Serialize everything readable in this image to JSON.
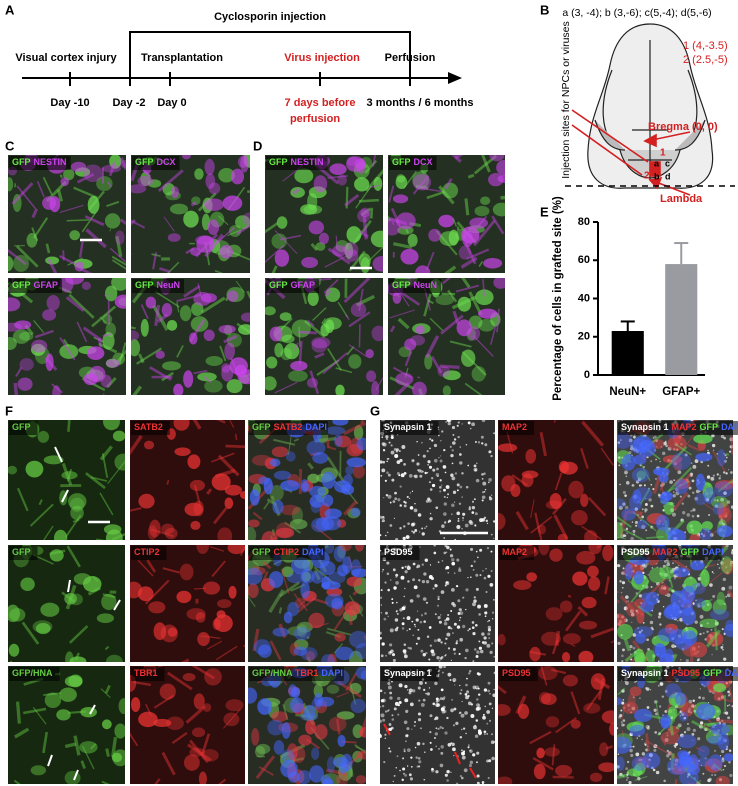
{
  "figure": {
    "panel_a": {
      "label": "A",
      "bracket": "Cyclosporin injection",
      "events": [
        "Visual cortex injury",
        "Transplantation",
        "Virus injection",
        "Perfusion"
      ],
      "days": [
        "Day -10",
        "Day -2",
        "Day 0",
        "3 months / 6 months"
      ],
      "virus_timing": [
        "7 days before",
        "perfusion"
      ]
    },
    "panel_b": {
      "label": "B",
      "coordinates": "a (3, -4); b (3,-6); c(5,-4); d(5,-6)",
      "axis_label": "Injection sites for NPCs or viruses",
      "sites": [
        "1 (4,-3.5)",
        "2 (2.5,-5)"
      ],
      "bregma": "Bregma (0, 0)",
      "lambda": "Lambda",
      "site_marks": [
        "1",
        "2",
        "a",
        "b",
        "c",
        "d"
      ]
    },
    "panel_c": {
      "label": "C",
      "tiles": [
        {
          "channels": [
            {
              "text": "GFP",
              "color": "#66ee44"
            },
            {
              "text": "NESTIN",
              "color": "#cc44ee"
            }
          ]
        },
        {
          "channels": [
            {
              "text": "GFP",
              "color": "#66ee44"
            },
            {
              "text": "DCX",
              "color": "#cc44ee"
            }
          ]
        },
        {
          "channels": [
            {
              "text": "GFP",
              "color": "#66ee44"
            },
            {
              "text": "GFAP",
              "color": "#cc44ee"
            }
          ]
        },
        {
          "channels": [
            {
              "text": "GFP",
              "color": "#66ee44"
            },
            {
              "text": "NeuN",
              "color": "#cc44ee"
            }
          ]
        }
      ]
    },
    "panel_d": {
      "label": "D",
      "tiles": [
        {
          "channels": [
            {
              "text": "GFP",
              "color": "#66ee44"
            },
            {
              "text": "NESTIN",
              "color": "#cc44ee"
            }
          ]
        },
        {
          "channels": [
            {
              "text": "GFP",
              "color": "#66ee44"
            },
            {
              "text": "DCX",
              "color": "#cc44ee"
            }
          ]
        },
        {
          "channels": [
            {
              "text": "GFP",
              "color": "#66ee44"
            },
            {
              "text": "GFAP",
              "color": "#cc44ee"
            }
          ]
        },
        {
          "channels": [
            {
              "text": "GFP",
              "color": "#66ee44"
            },
            {
              "text": "NeuN",
              "color": "#cc44ee"
            }
          ]
        }
      ]
    },
    "panel_e_label": "E",
    "panel_f": {
      "label": "F",
      "tiles": [
        {
          "channels": [
            {
              "text": "GFP",
              "color": "#66cc44"
            }
          ]
        },
        {
          "channels": [
            {
              "text": "SATB2",
              "color": "#ee3333"
            }
          ]
        },
        {
          "channels": [
            {
              "text": "GFP",
              "color": "#66cc44"
            },
            {
              "text": "SATB2",
              "color": "#ee3333"
            },
            {
              "text": "DAPI",
              "color": "#4466ff"
            }
          ]
        },
        {
          "channels": [
            {
              "text": "GFP",
              "color": "#66cc44"
            }
          ]
        },
        {
          "channels": [
            {
              "text": "CTIP2",
              "color": "#ee3333"
            }
          ]
        },
        {
          "channels": [
            {
              "text": "GFP",
              "color": "#66cc44"
            },
            {
              "text": "CTIP2",
              "color": "#ee3333"
            },
            {
              "text": "DAPI",
              "color": "#4466ff"
            }
          ]
        },
        {
          "channels": [
            {
              "text": "GFP/HNA",
              "color": "#66cc44"
            }
          ]
        },
        {
          "channels": [
            {
              "text": "TBR1",
              "color": "#ee3333"
            }
          ]
        },
        {
          "channels": [
            {
              "text": "GFP/HNA",
              "color": "#66cc44"
            },
            {
              "text": "TBR1",
              "color": "#ee3333"
            },
            {
              "text": "DAPI",
              "color": "#4466ff"
            }
          ]
        }
      ]
    },
    "panel_g": {
      "label": "G",
      "tiles": [
        {
          "channels": [
            {
              "text": "Synapsin 1",
              "color": "#ffffff"
            }
          ]
        },
        {
          "channels": [
            {
              "text": "MAP2",
              "color": "#ee3333"
            }
          ]
        },
        {
          "channels": [
            {
              "text": "Synapsin 1",
              "color": "#ffffff"
            },
            {
              "text": "MAP2",
              "color": "#ee3333"
            },
            {
              "text": "GFP",
              "color": "#66ee44"
            },
            {
              "text": "DAPI",
              "color": "#4466ff"
            }
          ]
        },
        {
          "channels": [
            {
              "text": "PSD95",
              "color": "#ffffff"
            }
          ]
        },
        {
          "channels": [
            {
              "text": "MAP2",
              "color": "#ee3333"
            }
          ]
        },
        {
          "channels": [
            {
              "text": "PSD95",
              "color": "#ffffff"
            },
            {
              "text": "MAP2",
              "color": "#ee3333"
            },
            {
              "text": "GFP",
              "color": "#66ee44"
            },
            {
              "text": "DAPI",
              "color": "#4466ff"
            }
          ]
        },
        {
          "channels": [
            {
              "text": "Synapsin 1",
              "color": "#ffffff"
            }
          ]
        },
        {
          "channels": [
            {
              "text": "PSD95",
              "color": "#ee3333"
            }
          ]
        },
        {
          "channels": [
            {
              "text": "Synapsin 1",
              "color": "#ffffff"
            },
            {
              "text": "PSD95",
              "color": "#ee3333"
            },
            {
              "text": "GFP",
              "color": "#66ee44"
            },
            {
              "text": "DAPI",
              "color": "#4466ff"
            }
          ]
        }
      ]
    }
  },
  "chart_data": {
    "type": "bar",
    "ylabel": "Percentage of cells in grafted site (%)",
    "categories": [
      "NeuN+",
      "GFAP+"
    ],
    "values": [
      23,
      58
    ],
    "errors": [
      5,
      11
    ],
    "colors": [
      "#000000",
      "#9a9ba0"
    ],
    "ylim": [
      0,
      80
    ],
    "yticks": [
      0,
      20,
      40,
      60,
      80
    ]
  }
}
